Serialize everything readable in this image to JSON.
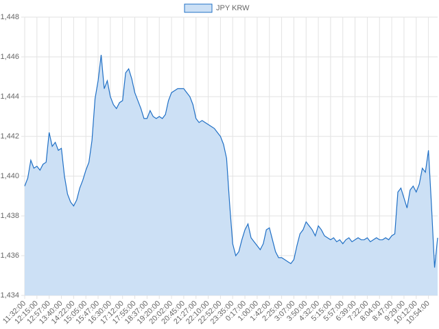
{
  "chart_data": {
    "type": "line",
    "categories": [
      "11:32:00",
      null,
      null,
      null,
      "12:15:00",
      null,
      null,
      null,
      "12:57:00",
      null,
      null,
      null,
      "13:40:00",
      null,
      null,
      null,
      "14:22:00",
      null,
      null,
      null,
      "15:05:00",
      null,
      null,
      null,
      "15:47:00",
      null,
      null,
      null,
      "16:30:00",
      null,
      null,
      null,
      "17:12:00",
      null,
      null,
      null,
      "17:55:00",
      null,
      null,
      null,
      "18:37:00",
      null,
      null,
      null,
      "19:20:00",
      null,
      null,
      null,
      "20:02:00",
      null,
      null,
      null,
      "20:45:00",
      null,
      null,
      null,
      "21:27:00",
      null,
      null,
      null,
      "22:10:00",
      null,
      null,
      null,
      "22:52:00",
      null,
      null,
      null,
      "23:35:00",
      null,
      null,
      null,
      "0:17:00",
      null,
      null,
      null,
      "1:00:00",
      null,
      null,
      null,
      "1:42:00",
      null,
      null,
      null,
      "2:25:00",
      null,
      null,
      null,
      "3:07:00",
      null,
      null,
      null,
      "3:50:00",
      null,
      null,
      null,
      "4:32:00",
      null,
      null,
      null,
      "5:15:00",
      null,
      null,
      null,
      "5:57:00",
      null,
      null,
      null,
      "6:39:00",
      null,
      null,
      null,
      "7:22:00",
      null,
      null,
      null,
      "8:04:00",
      null,
      null,
      null,
      "8:47:00",
      null,
      null,
      null,
      "9:29:00",
      null,
      null,
      null,
      "10:12:00",
      null,
      null,
      null,
      "10:54:00",
      null,
      null,
      null
    ],
    "series": [
      {
        "name": "JPY KRW",
        "color": "#1f6fc5",
        "fill": "#cce0f5",
        "values": [
          1439.5,
          1439.9,
          1440.8,
          1440.4,
          1440.5,
          1440.3,
          1440.6,
          1440.7,
          1442.2,
          1441.5,
          1441.7,
          1441.3,
          1441.4,
          1440.0,
          1439.1,
          1438.7,
          1438.5,
          1438.8,
          1439.4,
          1439.8,
          1440.3,
          1440.7,
          1441.8,
          1443.9,
          1444.8,
          1446.1,
          1444.4,
          1444.8,
          1444.0,
          1443.6,
          1443.4,
          1443.7,
          1443.8,
          1445.2,
          1445.4,
          1444.9,
          1444.2,
          1443.8,
          1443.4,
          1442.9,
          1442.9,
          1443.3,
          1443.0,
          1442.9,
          1443.0,
          1442.9,
          1443.1,
          1443.8,
          1444.2,
          1444.3,
          1444.4,
          1444.4,
          1444.4,
          1444.2,
          1444.0,
          1443.6,
          1442.9,
          1442.7,
          1442.8,
          1442.7,
          1442.6,
          1442.5,
          1442.4,
          1442.2,
          1442.0,
          1441.6,
          1440.9,
          1438.6,
          1436.6,
          1436.0,
          1436.2,
          1436.8,
          1437.3,
          1437.6,
          1436.9,
          1436.7,
          1436.5,
          1436.3,
          1436.6,
          1437.3,
          1437.4,
          1436.8,
          1436.2,
          1435.9,
          1435.9,
          1435.8,
          1435.7,
          1435.6,
          1435.8,
          1436.5,
          1437.1,
          1437.3,
          1437.7,
          1437.5,
          1437.3,
          1437.0,
          1437.5,
          1437.3,
          1437.0,
          1436.9,
          1436.8,
          1436.9,
          1436.7,
          1436.8,
          1436.6,
          1436.8,
          1436.9,
          1436.7,
          1436.8,
          1436.9,
          1436.8,
          1436.8,
          1436.9,
          1436.7,
          1436.8,
          1436.9,
          1436.8,
          1436.8,
          1436.9,
          1436.8,
          1437.0,
          1437.1,
          1439.2,
          1439.4,
          1438.9,
          1438.4,
          1439.3,
          1439.5,
          1439.2,
          1439.6,
          1440.4,
          1440.2,
          1441.3,
          1438.5,
          1435.4,
          1436.9
        ]
      }
    ],
    "ylim": [
      1434,
      1448
    ],
    "yticks": [
      {
        "value": 1434,
        "label": "1,434"
      },
      {
        "value": 1436,
        "label": "1,436"
      },
      {
        "value": 1438,
        "label": "1,438"
      },
      {
        "value": 1440,
        "label": "1,440"
      },
      {
        "value": 1442,
        "label": "1,442"
      },
      {
        "value": 1444,
        "label": "1,444"
      },
      {
        "value": 1446,
        "label": "1,446"
      },
      {
        "value": 1448,
        "label": "1,448"
      }
    ],
    "grid": true,
    "legend": "top"
  }
}
